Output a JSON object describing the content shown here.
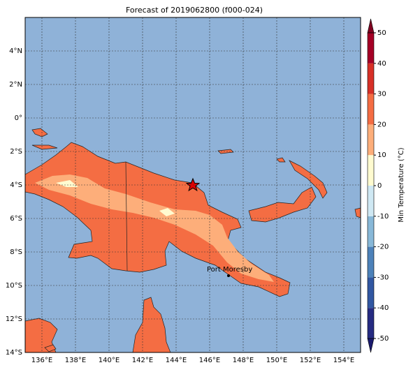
{
  "title": "Forecast of 2019062800 (f000-024)",
  "map": {
    "lon_lim": [
      135,
      155
    ],
    "lat_lim": [
      -14,
      6
    ],
    "lon_ticks": [
      {
        "value": 136,
        "label": "136°E"
      },
      {
        "value": 138,
        "label": "138°E"
      },
      {
        "value": 140,
        "label": "140°E"
      },
      {
        "value": 142,
        "label": "142°E"
      },
      {
        "value": 144,
        "label": "144°E"
      },
      {
        "value": 146,
        "label": "146°E"
      },
      {
        "value": 148,
        "label": "148°E"
      },
      {
        "value": 150,
        "label": "150°E"
      },
      {
        "value": 152,
        "label": "152°E"
      },
      {
        "value": 154,
        "label": "154°E"
      }
    ],
    "lat_ticks": [
      {
        "value": 4,
        "label": "4°N"
      },
      {
        "value": 2,
        "label": "2°N"
      },
      {
        "value": 0,
        "label": "0°"
      },
      {
        "value": -2,
        "label": "2°S"
      },
      {
        "value": -4,
        "label": "4°S"
      },
      {
        "value": -6,
        "label": "6°S"
      },
      {
        "value": -8,
        "label": "8°S"
      },
      {
        "value": -10,
        "label": "10°S"
      },
      {
        "value": -12,
        "label": "12°S"
      },
      {
        "value": -14,
        "label": "14°S"
      }
    ],
    "city": "Port Moresby"
  },
  "colorbar": {
    "label": "Min Temperature (°C)",
    "ticks": [
      -50,
      -40,
      -30,
      -20,
      -10,
      0,
      10,
      20,
      30,
      40,
      50
    ],
    "colors": [
      "#262b82",
      "#3157a2",
      "#4d82ba",
      "#88b8d8",
      "#cfe8f3",
      "#fffbd0",
      "#fdae7a",
      "#f46d43",
      "#d73027",
      "#a50026"
    ],
    "under_color": "#1a1a6e",
    "over_color": "#800020"
  }
}
